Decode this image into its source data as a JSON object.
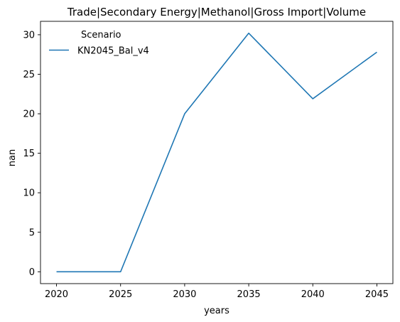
{
  "chart_data": {
    "type": "line",
    "title": "Trade|Secondary Energy|Methanol|Gross Import|Volume",
    "xlabel": "years",
    "ylabel": "nan",
    "x": [
      2020,
      2025,
      2030,
      2035,
      2040,
      2045
    ],
    "xticks": [
      "2020",
      "2025",
      "2030",
      "2035",
      "2040",
      "2045"
    ],
    "yticks": [
      "0",
      "5",
      "10",
      "15",
      "20",
      "25",
      "30"
    ],
    "xlim": [
      2018.75,
      2046.25
    ],
    "ylim": [
      -1.5,
      31.7
    ],
    "grid": false,
    "legend": {
      "title": "Scenario",
      "placement": "top-left"
    },
    "series": [
      {
        "name": "KN2045_Bal_v4",
        "color": "#1f77b4",
        "values": [
          0,
          0,
          20.0,
          30.2,
          21.9,
          27.8
        ]
      }
    ]
  }
}
